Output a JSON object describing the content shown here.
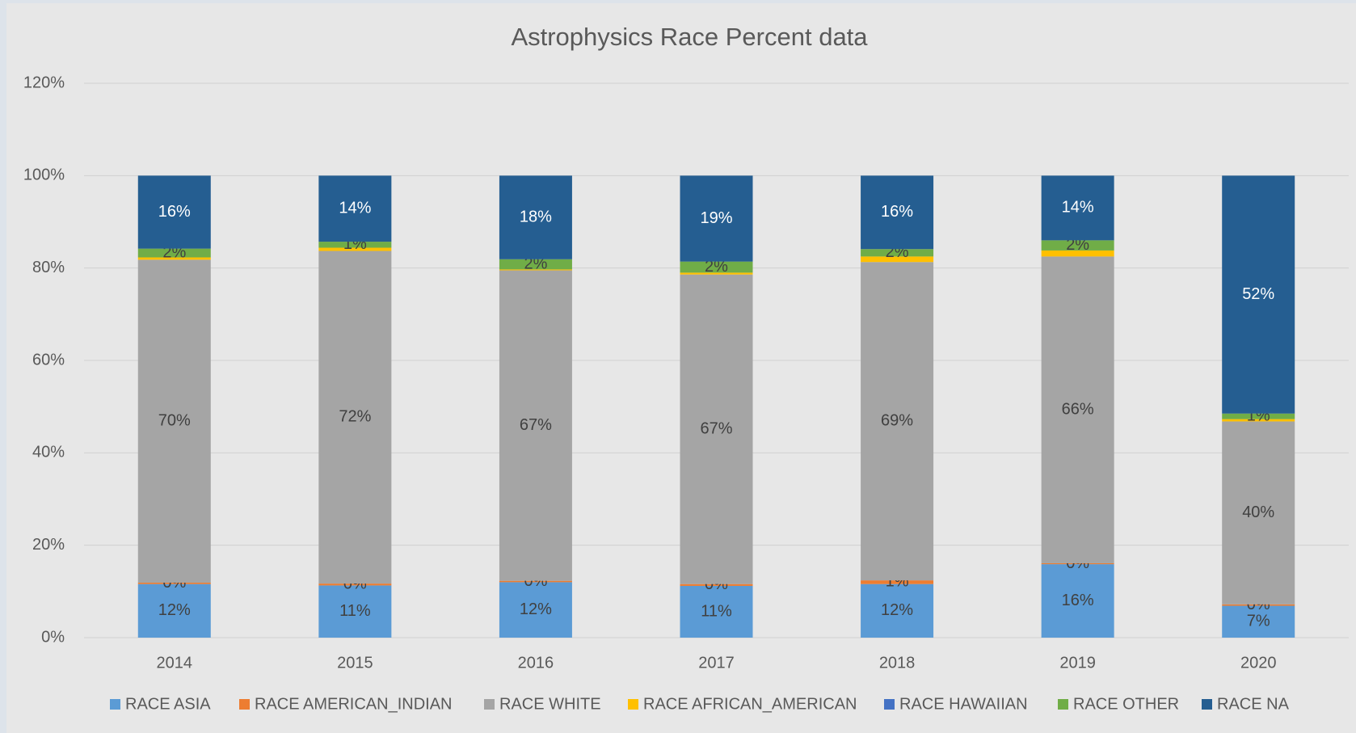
{
  "chart_data": {
    "type": "stacked_bar",
    "title": "Astrophysics Race Percent data",
    "categories": [
      "2014",
      "2015",
      "2016",
      "2017",
      "2018",
      "2019",
      "2020"
    ],
    "series": [
      {
        "name": "RACE ASIA",
        "color": "#5b9bd5",
        "values": [
          11.6,
          11.3,
          12.0,
          11.2,
          11.6,
          15.9,
          6.9
        ],
        "value_labels": [
          "12%",
          "11%",
          "12%",
          "11%",
          "12%",
          "16%",
          "7%"
        ]
      },
      {
        "name": "RACE AMERICAN_INDIAN",
        "color": "#ed7d31",
        "values": [
          0.3,
          0.4,
          0.3,
          0.4,
          0.8,
          0.2,
          0.3
        ],
        "value_labels": [
          "0%",
          "0%",
          "0%",
          "0%",
          "1%",
          "0%",
          "0%"
        ]
      },
      {
        "name": "RACE WHITE",
        "color": "#a5a5a5",
        "values": [
          69.9,
          72.0,
          67.2,
          67.0,
          68.9,
          66.4,
          39.6
        ],
        "value_labels": [
          "70%",
          "72%",
          "67%",
          "67%",
          "69%",
          "66%",
          "40%"
        ]
      },
      {
        "name": "RACE AFRICAN_AMERICAN",
        "color": "#ffc000",
        "values": [
          0.5,
          0.7,
          0.2,
          0.4,
          1.2,
          1.3,
          0.5
        ]
      },
      {
        "name": "RACE HAWAIIAN",
        "color": "#4472c4",
        "values": [
          0,
          0,
          0,
          0,
          0,
          0,
          0
        ]
      },
      {
        "name": "RACE OTHER",
        "color": "#70ad47",
        "values": [
          1.9,
          1.3,
          2.2,
          2.4,
          1.6,
          2.2,
          1.2
        ],
        "value_labels": [
          "2%",
          "1%",
          "2%",
          "2%",
          "2%",
          "2%",
          "1%"
        ]
      },
      {
        "name": "RACE NA",
        "color": "#255e91",
        "values": [
          15.8,
          14.3,
          18.1,
          18.6,
          15.9,
          14.0,
          51.5
        ],
        "value_labels": [
          "16%",
          "14%",
          "18%",
          "19%",
          "16%",
          "14%",
          "52%"
        ]
      }
    ],
    "ylim": [
      0,
      120
    ],
    "yticks": [
      {
        "value": 0,
        "label": "0%"
      },
      {
        "value": 20,
        "label": "20%"
      },
      {
        "value": 40,
        "label": "40%"
      },
      {
        "value": 60,
        "label": "60%"
      },
      {
        "value": 80,
        "label": "80%"
      },
      {
        "value": 100,
        "label": "100%"
      },
      {
        "value": 120,
        "label": "120%"
      }
    ],
    "grid": true,
    "legend": "bottom"
  }
}
